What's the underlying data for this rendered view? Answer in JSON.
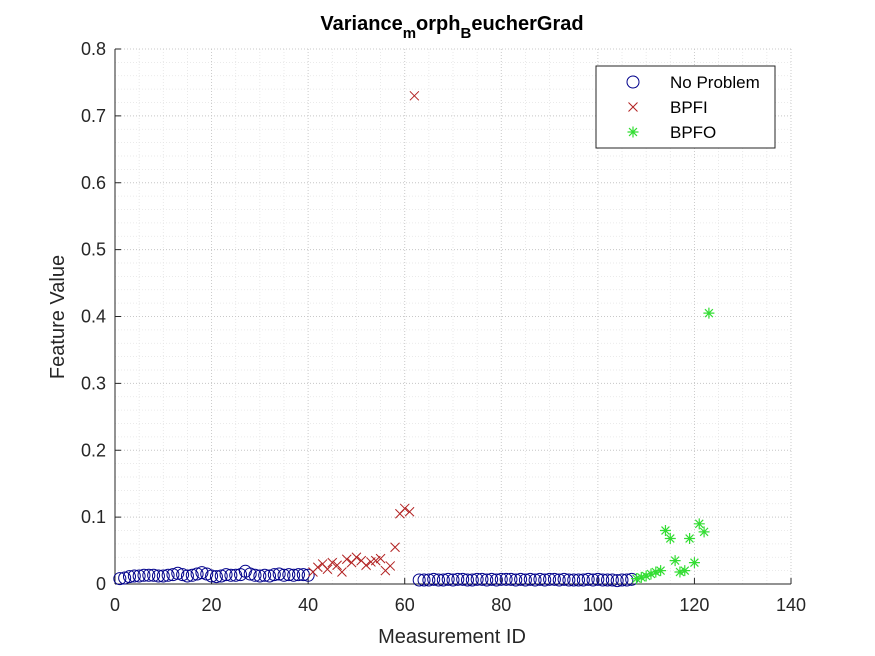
{
  "chart_data": {
    "type": "scatter",
    "title": {
      "main": "Variance",
      "sub1": "m",
      "mid": "orph",
      "sub2": "B",
      "tail": "eucherGrad"
    },
    "xlabel": "Measurement ID",
    "ylabel": "Feature Value",
    "xlim": [
      0,
      140
    ],
    "ylim": [
      0,
      0.8
    ],
    "xticks": [
      0,
      20,
      40,
      60,
      80,
      100,
      120,
      140
    ],
    "yticks": [
      0,
      0.1,
      0.2,
      0.3,
      0.4,
      0.5,
      0.6,
      0.7,
      0.8
    ],
    "xtick_labels": [
      "0",
      "20",
      "40",
      "60",
      "80",
      "100",
      "120",
      "140"
    ],
    "ytick_labels": [
      "0",
      "0.1",
      "0.2",
      "0.3",
      "0.4",
      "0.5",
      "0.6",
      "0.7",
      "0.8"
    ],
    "grid": "major and minor, dotted",
    "legend_position": "top-right",
    "series": [
      {
        "name": "No Problem",
        "marker": "circle",
        "color": "#00008B",
        "x": [
          1,
          2,
          3,
          4,
          5,
          6,
          7,
          8,
          9,
          10,
          11,
          12,
          13,
          14,
          15,
          16,
          17,
          18,
          19,
          20,
          21,
          22,
          23,
          24,
          25,
          26,
          27,
          28,
          29,
          30,
          31,
          32,
          33,
          34,
          35,
          36,
          37,
          38,
          39,
          40,
          63,
          64,
          65,
          66,
          67,
          68,
          69,
          70,
          71,
          72,
          73,
          74,
          75,
          76,
          77,
          78,
          79,
          80,
          81,
          82,
          83,
          84,
          85,
          86,
          87,
          88,
          89,
          90,
          91,
          92,
          93,
          94,
          95,
          96,
          97,
          98,
          99,
          100,
          101,
          102,
          103,
          104,
          105,
          106,
          107
        ],
        "y": [
          0.008,
          0.009,
          0.011,
          0.012,
          0.012,
          0.013,
          0.013,
          0.013,
          0.012,
          0.012,
          0.013,
          0.014,
          0.016,
          0.014,
          0.012,
          0.013,
          0.015,
          0.017,
          0.015,
          0.012,
          0.011,
          0.012,
          0.014,
          0.013,
          0.013,
          0.014,
          0.019,
          0.015,
          0.013,
          0.012,
          0.013,
          0.012,
          0.014,
          0.015,
          0.013,
          0.014,
          0.013,
          0.014,
          0.014,
          0.013,
          0.006,
          0.006,
          0.006,
          0.007,
          0.006,
          0.006,
          0.007,
          0.006,
          0.007,
          0.007,
          0.006,
          0.006,
          0.007,
          0.007,
          0.006,
          0.007,
          0.006,
          0.007,
          0.007,
          0.007,
          0.006,
          0.007,
          0.006,
          0.007,
          0.006,
          0.007,
          0.006,
          0.007,
          0.007,
          0.006,
          0.007,
          0.006,
          0.006,
          0.006,
          0.006,
          0.007,
          0.006,
          0.007,
          0.006,
          0.006,
          0.006,
          0.005,
          0.006,
          0.006,
          0.007
        ]
      },
      {
        "name": "BPFI",
        "marker": "x",
        "color": "#B22222",
        "x": [
          41,
          42,
          43,
          44,
          45,
          46,
          47,
          48,
          49,
          50,
          51,
          52,
          53,
          54,
          55,
          56,
          57,
          58,
          59,
          60,
          61,
          62
        ],
        "y": [
          0.018,
          0.025,
          0.03,
          0.022,
          0.032,
          0.028,
          0.018,
          0.037,
          0.032,
          0.04,
          0.035,
          0.028,
          0.033,
          0.035,
          0.038,
          0.02,
          0.027,
          0.055,
          0.105,
          0.113,
          0.108,
          0.73
        ]
      },
      {
        "name": "BPFO",
        "marker": "star",
        "color": "#33DD33",
        "x": [
          108,
          109,
          110,
          111,
          112,
          113,
          114,
          115,
          116,
          117,
          118,
          119,
          120,
          121,
          122,
          123
        ],
        "y": [
          0.008,
          0.01,
          0.012,
          0.015,
          0.018,
          0.02,
          0.08,
          0.068,
          0.035,
          0.018,
          0.02,
          0.068,
          0.032,
          0.09,
          0.078,
          0.405
        ]
      }
    ]
  }
}
